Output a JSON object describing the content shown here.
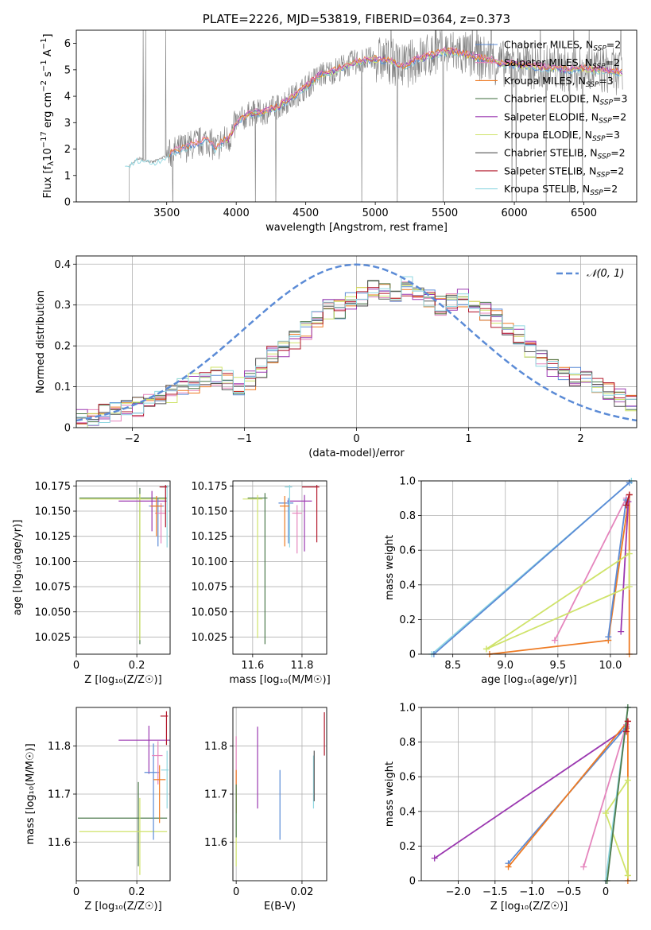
{
  "colors": {
    "Chabrier MILES": "#5b8bd6",
    "Salpeter MILES": "#e585bd",
    "Kroupa MILES": "#ee7a22",
    "Chabrier ELODIE": "#4d7a4d",
    "Salpeter ELODIE": "#9b38b0",
    "Kroupa ELODIE": "#cfe36a",
    "Chabrier STELIB": "#555555",
    "Salpeter STELIB": "#b2182b",
    "Kroupa STELIB": "#8fd7e1",
    "normal": "#5b8bd6"
  },
  "chart_data": [
    {
      "id": "spectrum",
      "type": "line",
      "title": "PLATE=2226, MJD=53819, FIBERID=0364, z=0.373",
      "xlabel": "wavelength [Angstrom, rest frame]",
      "ylabel": "Flux [f",
      "xlim": [
        2850,
        6880
      ],
      "ylim": [
        0,
        6.5
      ],
      "xticks": [
        3500,
        4000,
        4500,
        5000,
        5500,
        6000,
        6500
      ],
      "yticks": [
        0,
        1,
        2,
        3,
        4,
        5,
        6
      ],
      "grid": false,
      "legend_position": "top-right",
      "legend": [
        {
          "label": "Chabrier MILES, N",
          "sub": "SSP",
          "tail": "=2",
          "model": "Chabrier MILES"
        },
        {
          "label": "Salpeter MILES, N",
          "sub": "SSP",
          "tail": "=2",
          "model": "Salpeter MILES"
        },
        {
          "label": "Kroupa MILES, N",
          "sub": "SSP",
          "tail": "=3",
          "model": "Kroupa MILES"
        },
        {
          "label": "Chabrier ELODIE, N",
          "sub": "SSP",
          "tail": "=3",
          "model": "Chabrier ELODIE"
        },
        {
          "label": "Salpeter ELODIE, N",
          "sub": "SSP",
          "tail": "=2",
          "model": "Salpeter ELODIE"
        },
        {
          "label": "Kroupa ELODIE, N",
          "sub": "SSP",
          "tail": "=3",
          "model": "Kroupa ELODIE"
        },
        {
          "label": "Chabrier STELIB, N",
          "sub": "SSP",
          "tail": "=2",
          "model": "Chabrier STELIB"
        },
        {
          "label": "Salpeter STELIB, N",
          "sub": "SSP",
          "tail": "=2",
          "model": "Salpeter STELIB"
        },
        {
          "label": "Kroupa STELIB, N",
          "sub": "SSP",
          "tail": "=2",
          "model": "Kroupa STELIB"
        }
      ],
      "continuum": {
        "x": [
          3200,
          3250,
          3300,
          3400,
          3500,
          3600,
          3700,
          3800,
          3850,
          3900,
          3950,
          4000,
          4100,
          4200,
          4300,
          4400,
          4500,
          4600,
          4700,
          4800,
          4900,
          5000,
          5100,
          5200,
          5300,
          5400,
          5500,
          5600,
          5700,
          5800,
          5900,
          6000,
          6100,
          6200,
          6300,
          6400,
          6500,
          6600,
          6700,
          6780
        ],
        "y": [
          1.3,
          1.45,
          1.65,
          1.5,
          1.75,
          2.0,
          2.2,
          2.35,
          2.0,
          2.3,
          2.4,
          3.0,
          3.35,
          3.4,
          3.6,
          3.95,
          4.35,
          4.8,
          4.95,
          5.2,
          5.35,
          5.4,
          5.35,
          5.1,
          5.4,
          5.55,
          5.7,
          5.65,
          5.5,
          5.4,
          5.25,
          5.2,
          5.15,
          5.1,
          5.05,
          5.0,
          5.05,
          5.0,
          4.95,
          4.9
        ]
      },
      "data_range": [
        3175,
        6780
      ]
    },
    {
      "id": "residuals",
      "type": "line",
      "xlabel": "(data-model)/error",
      "ylabel": "Normed distribution",
      "xlim": [
        -2.5,
        2.5
      ],
      "ylim": [
        0,
        0.42
      ],
      "xticks": [
        -2,
        -1,
        0,
        1,
        2
      ],
      "yticks": [
        0.0,
        0.1,
        0.2,
        0.3,
        0.4
      ],
      "grid": true,
      "legend_position": "top-right",
      "legend": [
        {
          "label": "𝒩(0, 1)"
        }
      ],
      "bins": {
        "start": -2.5,
        "width": 0.1,
        "count": 50
      },
      "mean_hist": [
        0.02,
        0.028,
        0.035,
        0.04,
        0.043,
        0.05,
        0.06,
        0.07,
        0.085,
        0.095,
        0.108,
        0.118,
        0.125,
        0.115,
        0.105,
        0.115,
        0.145,
        0.175,
        0.19,
        0.215,
        0.24,
        0.265,
        0.29,
        0.29,
        0.305,
        0.32,
        0.34,
        0.33,
        0.33,
        0.345,
        0.335,
        0.32,
        0.3,
        0.31,
        0.32,
        0.3,
        0.285,
        0.265,
        0.24,
        0.225,
        0.195,
        0.175,
        0.15,
        0.13,
        0.125,
        0.115,
        0.1,
        0.085,
        0.075,
        0.065
      ]
    },
    {
      "id": "age-vs-Z",
      "type": "scatter",
      "xlabel": "Z [log₁₀(Z/Z☉)]",
      "ylabel": "age  [log₁₀(age/yr)]",
      "xlim": [
        0.0,
        0.31
      ],
      "ylim": [
        10.008,
        10.18
      ],
      "xticks": [
        0.0,
        0.2
      ],
      "yticks": [
        10.025,
        10.05,
        10.075,
        10.1,
        10.125,
        10.15,
        10.175
      ],
      "grid": true,
      "errorbars": [
        {
          "model": "Chabrier ELODIE",
          "x": 0.21,
          "y": 10.163,
          "xerr": [
            0.2,
            0.09
          ],
          "yerr": [
            0.145,
            0.01
          ]
        },
        {
          "model": "Kroupa ELODIE",
          "x": 0.21,
          "y": 10.162,
          "xerr": [
            0.2,
            0.09
          ],
          "yerr": [
            0.14,
            0.005
          ]
        },
        {
          "model": "Salpeter ELODIE",
          "x": 0.25,
          "y": 10.16,
          "xerr": [
            0.11,
            0.05
          ],
          "yerr": [
            0.03,
            0.01
          ]
        },
        {
          "model": "Chabrier MILES",
          "x": 0.27,
          "y": 10.155,
          "xerr": [
            0.03,
            0.02
          ],
          "yerr": [
            0.04,
            0.008
          ]
        },
        {
          "model": "Salpeter MILES",
          "x": 0.28,
          "y": 10.148,
          "xerr": [
            0.02,
            0.015
          ],
          "yerr": [
            0.03,
            0.01
          ]
        },
        {
          "model": "Kroupa MILES",
          "x": 0.265,
          "y": 10.155,
          "xerr": [
            0.02,
            0.02
          ],
          "yerr": [
            0.03,
            0.01
          ]
        },
        {
          "model": "Kroupa STELIB",
          "x": 0.3,
          "y": 10.174,
          "xerr": [
            0.02,
            0.005
          ],
          "yerr": [
            0.06,
            0.002
          ]
        },
        {
          "model": "Salpeter STELIB",
          "x": 0.295,
          "y": 10.174,
          "xerr": [
            0.02,
            0.005
          ],
          "yerr": [
            0.04,
            0.002
          ]
        }
      ]
    },
    {
      "id": "age-vs-mass",
      "type": "scatter",
      "xlabel": "mass [log₁₀(M/M☉)]",
      "xlim": [
        11.52,
        11.9
      ],
      "ylim": [
        10.008,
        10.18
      ],
      "xticks": [
        11.6,
        11.8
      ],
      "yticks": [
        10.025,
        10.05,
        10.075,
        10.1,
        10.125,
        10.15,
        10.175
      ],
      "grid": true,
      "errorbars": [
        {
          "model": "Chabrier ELODIE",
          "x": 11.65,
          "y": 10.163,
          "xerr": [
            0.07,
            0.01
          ],
          "yerr": [
            0.145,
            0.005
          ]
        },
        {
          "model": "Kroupa ELODIE",
          "x": 11.62,
          "y": 10.162,
          "xerr": [
            0.06,
            0.02
          ],
          "yerr": [
            0.138,
            0.004
          ]
        },
        {
          "model": "Salpeter ELODIE",
          "x": 11.81,
          "y": 10.16,
          "xerr": [
            0.07,
            0.03
          ],
          "yerr": [
            0.05,
            0.006
          ]
        },
        {
          "model": "Chabrier MILES",
          "x": 11.745,
          "y": 10.158,
          "xerr": [
            0.04,
            0.02
          ],
          "yerr": [
            0.04,
            0.005
          ]
        },
        {
          "model": "Salpeter MILES",
          "x": 11.78,
          "y": 10.148,
          "xerr": [
            0.02,
            0.02
          ],
          "yerr": [
            0.04,
            0.008
          ]
        },
        {
          "model": "Kroupa MILES",
          "x": 11.73,
          "y": 10.155,
          "xerr": [
            0.02,
            0.02
          ],
          "yerr": [
            0.04,
            0.01
          ]
        },
        {
          "model": "Kroupa STELIB",
          "x": 11.75,
          "y": 10.174,
          "xerr": [
            0.02,
            0.01
          ],
          "yerr": [
            0.06,
            0.002
          ]
        },
        {
          "model": "Salpeter STELIB",
          "x": 11.86,
          "y": 10.174,
          "xerr": [
            0.06,
            0.01
          ],
          "yerr": [
            0.055,
            0.002
          ]
        }
      ]
    },
    {
      "id": "weight-vs-age",
      "type": "line",
      "xlabel": "age  [log₁₀(age/yr)]",
      "ylabel": "mass weight",
      "xlim": [
        8.2,
        10.25
      ],
      "ylim": [
        0,
        1.0
      ],
      "xticks": [
        8.5,
        9.0,
        9.5,
        10.0
      ],
      "yticks": [
        0.0,
        0.2,
        0.4,
        0.6,
        0.8,
        1.0
      ],
      "grid": true,
      "lines": [
        {
          "model": "Kroupa STELIB",
          "x": [
            8.3,
            10.2
          ],
          "y": [
            0.0,
            1.0
          ]
        },
        {
          "model": "Chabrier MILES",
          "x": [
            8.32,
            10.18
          ],
          "y": [
            0.0,
            0.99
          ]
        },
        {
          "model": "Kroupa MILES",
          "x": [
            8.85,
            9.98,
            10.18,
            10.18
          ],
          "y": [
            0.0,
            0.08,
            0.92,
            0.0
          ]
        },
        {
          "model": "Salpeter MILES",
          "x": [
            9.47,
            10.15
          ],
          "y": [
            0.08,
            0.9
          ]
        },
        {
          "model": "Salpeter ELODIE",
          "x": [
            10.1,
            10.17
          ],
          "y": [
            0.13,
            0.88
          ]
        },
        {
          "model": "Chabrier MILES",
          "x": [
            9.98,
            10.15
          ],
          "y": [
            0.1,
            0.89
          ]
        },
        {
          "model": "Kroupa ELODIE",
          "x": [
            8.82,
            10.18,
            10.18,
            8.82
          ],
          "y": [
            0.03,
            0.58,
            0.39,
            0.03
          ]
        },
        {
          "model": "Salpeter STELIB",
          "x": [
            10.15,
            10.18
          ],
          "y": [
            0.86,
            0.92
          ]
        }
      ]
    },
    {
      "id": "mass-vs-Z",
      "type": "scatter",
      "xlabel": "Z [log₁₀(Z/Z☉)]",
      "ylabel": "mass [log₁₀(M/M☉)]",
      "xlim": [
        0.0,
        0.31
      ],
      "ylim": [
        11.52,
        11.88
      ],
      "xticks": [
        0.0,
        0.2
      ],
      "yticks": [
        11.6,
        11.7,
        11.8
      ],
      "grid": true,
      "errorbars": [
        {
          "model": "Chabrier ELODIE",
          "x": 0.205,
          "y": 11.65,
          "xerr": [
            0.2,
            0.095
          ],
          "yerr": [
            0.1,
            0.075
          ]
        },
        {
          "model": "Kroupa ELODIE",
          "x": 0.21,
          "y": 11.622,
          "xerr": [
            0.2,
            0.09
          ],
          "yerr": [
            0.09,
            0.07
          ]
        },
        {
          "model": "Salpeter ELODIE",
          "x": 0.24,
          "y": 11.812,
          "xerr": [
            0.1,
            0.07
          ],
          "yerr": [
            0.07,
            0.03
          ]
        },
        {
          "model": "Chabrier MILES",
          "x": 0.255,
          "y": 11.745,
          "xerr": [
            0.03,
            0.02
          ],
          "yerr": [
            0.14,
            0.06
          ]
        },
        {
          "model": "Salpeter MILES",
          "x": 0.27,
          "y": 11.78,
          "xerr": [
            0.02,
            0.015
          ],
          "yerr": [
            0.06,
            0.03
          ]
        },
        {
          "model": "Kroupa MILES",
          "x": 0.275,
          "y": 11.73,
          "xerr": [
            0.02,
            0.02
          ],
          "yerr": [
            0.09,
            0.03
          ]
        },
        {
          "model": "Kroupa STELIB",
          "x": 0.3,
          "y": 11.75,
          "xerr": [
            0.02,
            0.005
          ],
          "yerr": [
            0.08,
            0.04
          ]
        },
        {
          "model": "Salpeter STELIB",
          "x": 0.298,
          "y": 11.862,
          "xerr": [
            0.02,
            0.005
          ],
          "yerr": [
            0.06,
            0.01
          ]
        }
      ]
    },
    {
      "id": "mass-vs-EBV",
      "type": "scatter",
      "xlabel": "E(B-V)",
      "xlim": [
        -0.001,
        0.0275
      ],
      "ylim": [
        11.52,
        11.88
      ],
      "xticks": [
        0.0,
        0.02
      ],
      "yticks": [
        11.6,
        11.7,
        11.8
      ],
      "grid": true,
      "errorbars": [
        {
          "model": "Kroupa ELODIE",
          "x": 0.0,
          "y": 11.65,
          "yerr": [
            0.1,
            0.06
          ]
        },
        {
          "model": "Salpeter MILES",
          "x": 0.0,
          "y": 11.76,
          "yerr": [
            0.04,
            0.06
          ]
        },
        {
          "model": "Kroupa MILES",
          "x": 0.0,
          "y": 11.73,
          "yerr": [
            0.07,
            0.02
          ]
        },
        {
          "model": "Chabrier ELODIE",
          "x": 0.0,
          "y": 11.67,
          "yerr": [
            0.06,
            0.05
          ]
        },
        {
          "model": "Salpeter ELODIE",
          "x": 0.0065,
          "y": 11.755,
          "yerr": [
            0.085,
            0.085
          ]
        },
        {
          "model": "Chabrier MILES",
          "x": 0.0133,
          "y": 11.68,
          "yerr": [
            0.075,
            0.07
          ]
        },
        {
          "model": "Kroupa STELIB",
          "x": 0.0235,
          "y": 11.72,
          "yerr": [
            0.05,
            0.06
          ]
        },
        {
          "model": "Chabrier STELIB",
          "x": 0.0237,
          "y": 11.745,
          "yerr": [
            0.06,
            0.045
          ]
        },
        {
          "model": "Salpeter STELIB",
          "x": 0.0268,
          "y": 11.83,
          "yerr": [
            0.05,
            0.04
          ]
        }
      ]
    },
    {
      "id": "weight-vs-Z",
      "type": "line",
      "xlabel": "Z [log₁₀(Z/Z☉)]",
      "ylabel": "mass weight",
      "xlim": [
        -2.5,
        0.42
      ],
      "ylim": [
        0,
        1.0
      ],
      "xticks": [
        -2.0,
        -1.5,
        -1.0,
        -0.5,
        0.0
      ],
      "yticks": [
        0.0,
        0.2,
        0.4,
        0.6,
        0.8,
        1.0
      ],
      "grid": true,
      "lines": [
        {
          "model": "Salpeter ELODIE",
          "x": [
            -2.32,
            0.28
          ],
          "y": [
            0.13,
            0.88
          ]
        },
        {
          "model": "Chabrier MILES",
          "x": [
            -1.32,
            0.28
          ],
          "y": [
            0.1,
            0.89
          ]
        },
        {
          "model": "Kroupa MILES",
          "x": [
            -1.32,
            0.3,
            0.3
          ],
          "y": [
            0.08,
            0.92,
            0.0
          ]
        },
        {
          "model": "Salpeter MILES",
          "x": [
            -0.3,
            0.28
          ],
          "y": [
            0.08,
            0.9
          ]
        },
        {
          "model": "Kroupa ELODIE",
          "x": [
            0.0,
            0.3,
            0.3,
            0.0,
            0.3
          ],
          "y": [
            0.39,
            0.03,
            0.58,
            0.39,
            0.03
          ]
        },
        {
          "model": "Kroupa STELIB",
          "x": [
            0.0,
            0.3
          ],
          "y": [
            0.0,
            1.0
          ]
        },
        {
          "model": "Chabrier ELODIE",
          "x": [
            0.02,
            0.3
          ],
          "y": [
            0.0,
            1.0
          ]
        },
        {
          "model": "Salpeter STELIB",
          "x": [
            0.28,
            0.3
          ],
          "y": [
            0.86,
            0.92
          ]
        }
      ]
    }
  ]
}
